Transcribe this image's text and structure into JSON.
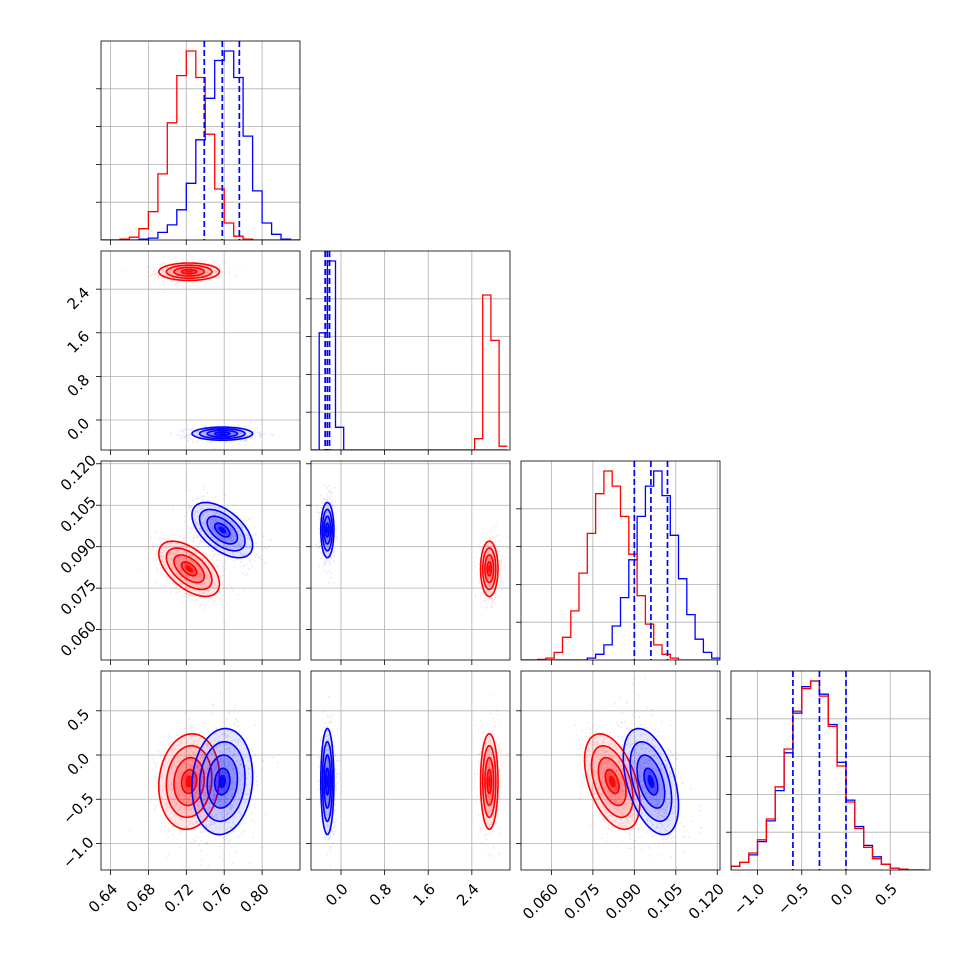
{
  "colors": {
    "red": "#ff0000",
    "blue": "#0000ff",
    "grid": "#b0b0b0",
    "axis": "#000000"
  },
  "chart_data": {
    "type": "corner",
    "grid": true,
    "parameters": [
      {
        "range": [
          0.63,
          0.84
        ],
        "ticks": [
          "0.64",
          "0.68",
          "0.72",
          "0.76",
          "0.80"
        ],
        "tick_values": [
          0.64,
          0.68,
          0.72,
          0.76,
          0.8
        ]
      },
      {
        "range": [
          -0.55,
          3.1
        ],
        "ticks": [
          "0.0",
          "0.8",
          "1.6",
          "2.4"
        ],
        "tick_values": [
          0.0,
          0.8,
          1.6,
          2.4
        ]
      },
      {
        "range": [
          0.049,
          0.121
        ],
        "ticks": [
          "0.060",
          "0.075",
          "0.090",
          "0.105",
          "0.120"
        ],
        "tick_values": [
          0.06,
          0.075,
          0.09,
          0.105,
          0.12
        ]
      },
      {
        "range": [
          -1.3,
          0.95
        ],
        "ticks": [
          "−1.0",
          "−0.5",
          "0.0",
          "0.5"
        ],
        "tick_values": [
          -1.0,
          -0.5,
          0.0,
          0.5
        ]
      }
    ],
    "series": [
      {
        "color": "red",
        "means": [
          0.723,
          2.72,
          0.082,
          -0.3
        ],
        "sds": [
          0.016,
          0.08,
          0.005,
          0.27
        ],
        "corr": {
          "0-1": 0.0,
          "0-2": -0.55,
          "0-3": 0.1,
          "1-2": 0.0,
          "1-3": 0.0,
          "2-3": -0.45
        }
      },
      {
        "color": "blue",
        "means": [
          0.758,
          -0.25,
          0.096,
          -0.3
        ],
        "sds": [
          0.016,
          0.06,
          0.005,
          0.3
        ],
        "corr": {
          "0-1": 0.0,
          "0-2": -0.55,
          "0-3": 0.1,
          "1-2": 0.0,
          "1-3": 0.0,
          "2-3": -0.45
        }
      }
    ],
    "quantiles": [
      [
        0.739,
        0.758,
        0.776
      ],
      [
        -0.29,
        -0.25,
        -0.21
      ],
      [
        0.09,
        0.096,
        0.102
      ],
      [
        -0.6,
        -0.3,
        0.0
      ]
    ],
    "histograms": [
      {
        "bins": [
          0.63,
          0.64,
          0.65,
          0.66,
          0.67,
          0.68,
          0.69,
          0.7,
          0.71,
          0.72,
          0.73,
          0.74,
          0.75,
          0.76,
          0.77,
          0.78,
          0.79,
          0.8,
          0.81,
          0.82,
          0.83,
          0.84
        ],
        "red": [
          0,
          0,
          0.005,
          0.015,
          0.06,
          0.15,
          0.35,
          0.62,
          0.87,
          1.0,
          0.86,
          0.56,
          0.27,
          0.09,
          0.02,
          0.005,
          0,
          0,
          0,
          0,
          0
        ],
        "blue": [
          0,
          0,
          0,
          0,
          0.005,
          0.01,
          0.04,
          0.08,
          0.16,
          0.3,
          0.53,
          0.75,
          0.95,
          1.0,
          0.86,
          0.55,
          0.26,
          0.09,
          0.03,
          0.005,
          0
        ]
      },
      {
        "bins": [
          -0.55,
          -0.4,
          -0.25,
          -0.1,
          0.05,
          0.2,
          0.35,
          0.5,
          0.65,
          0.8,
          0.95,
          1.1,
          1.25,
          1.4,
          1.55,
          1.7,
          1.85,
          2.0,
          2.15,
          2.3,
          2.45,
          2.6,
          2.75,
          2.9,
          3.05
        ],
        "red": [
          0,
          0,
          0,
          0,
          0,
          0,
          0,
          0,
          0,
          0,
          0,
          0,
          0,
          0,
          0,
          0,
          0,
          0,
          0,
          0,
          0.06,
          0.82,
          0.58,
          0.02
        ],
        "blue": [
          0,
          0.62,
          1.0,
          0.12,
          0,
          0,
          0,
          0,
          0,
          0,
          0,
          0,
          0,
          0,
          0,
          0,
          0,
          0,
          0,
          0,
          0,
          0,
          0,
          0
        ]
      },
      {
        "bins": [
          0.049,
          0.052,
          0.055,
          0.058,
          0.061,
          0.064,
          0.067,
          0.07,
          0.073,
          0.076,
          0.079,
          0.082,
          0.085,
          0.088,
          0.091,
          0.094,
          0.097,
          0.1,
          0.103,
          0.106,
          0.109,
          0.112,
          0.115,
          0.118,
          0.121
        ],
        "red": [
          0,
          0,
          0.003,
          0.01,
          0.04,
          0.12,
          0.26,
          0.46,
          0.67,
          0.88,
          1.0,
          0.92,
          0.76,
          0.56,
          0.34,
          0.19,
          0.08,
          0.03,
          0.01,
          0,
          0,
          0,
          0,
          0
        ],
        "blue": [
          0,
          0,
          0,
          0,
          0,
          0,
          0,
          0,
          0.01,
          0.03,
          0.08,
          0.18,
          0.33,
          0.53,
          0.76,
          0.92,
          1.0,
          0.87,
          0.66,
          0.43,
          0.24,
          0.11,
          0.04,
          0.01
        ]
      },
      {
        "bins": [
          -1.3,
          -1.2,
          -1.1,
          -1.0,
          -0.9,
          -0.8,
          -0.7,
          -0.6,
          -0.5,
          -0.4,
          -0.3,
          -0.2,
          -0.1,
          0.0,
          0.1,
          0.2,
          0.3,
          0.4,
          0.5,
          0.6,
          0.7,
          0.8,
          0.9
        ],
        "red": [
          0.02,
          0.04,
          0.09,
          0.16,
          0.27,
          0.44,
          0.64,
          0.84,
          0.96,
          1.0,
          0.92,
          0.76,
          0.55,
          0.36,
          0.22,
          0.12,
          0.06,
          0.03,
          0.01,
          0.005,
          0,
          0
        ],
        "blue": [
          0.02,
          0.04,
          0.08,
          0.15,
          0.26,
          0.42,
          0.62,
          0.83,
          0.97,
          1.0,
          0.93,
          0.77,
          0.57,
          0.37,
          0.23,
          0.13,
          0.07,
          0.03,
          0.01,
          0.005,
          0,
          0
        ]
      }
    ]
  }
}
